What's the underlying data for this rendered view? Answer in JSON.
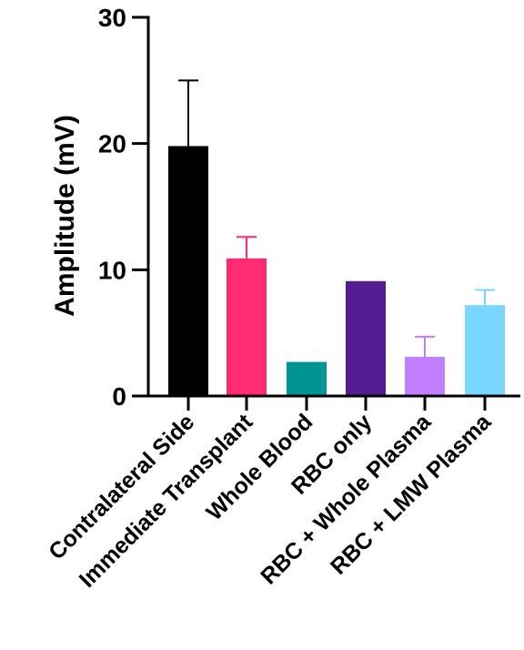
{
  "chart_data": {
    "type": "bar",
    "title": "",
    "xlabel": "",
    "ylabel": "Amplitude (mV)",
    "ylim": [
      0,
      30
    ],
    "yticks": [
      0,
      10,
      20,
      30
    ],
    "grid": false,
    "categories": [
      "Contralateral Side",
      "Immediate Transplant",
      "Whole Blood",
      "RBC only",
      "RBC + Whole Plasma",
      "RBC + LMW Plasma"
    ],
    "values": [
      19.8,
      10.9,
      2.7,
      9.1,
      3.1,
      7.2
    ],
    "errors": [
      5.2,
      1.7,
      0,
      0,
      1.6,
      1.2
    ],
    "colors": [
      "#000000",
      "#ff2a72",
      "#009494",
      "#531c8f",
      "#bf7fff",
      "#78d6ff"
    ]
  }
}
